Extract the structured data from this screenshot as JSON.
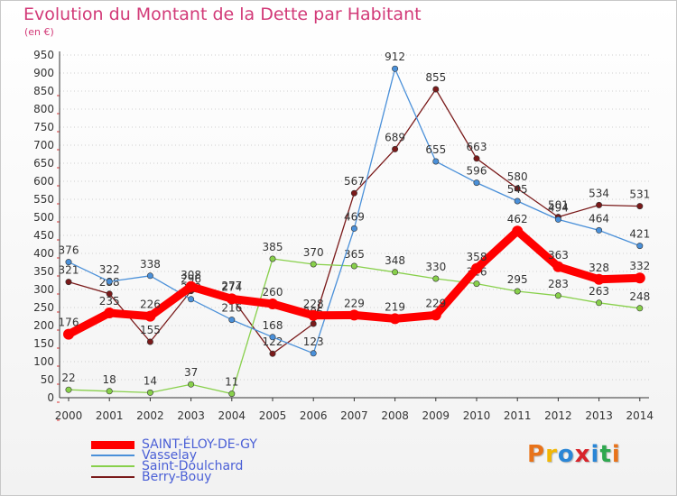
{
  "chart_data": {
    "type": "line",
    "title": "Evolution du Montant de la Dette par Habitant",
    "unit_label": "(en €)",
    "ylim": [
      0,
      950
    ],
    "y_ticks": [
      0,
      50,
      100,
      150,
      200,
      250,
      300,
      350,
      400,
      450,
      500,
      550,
      600,
      650,
      700,
      750,
      800,
      850,
      900,
      950
    ],
    "x": [
      "2000",
      "2001",
      "2002",
      "2003",
      "2004",
      "2005",
      "2006",
      "2007",
      "2008",
      "2009",
      "2010",
      "2011",
      "2012",
      "2013",
      "2014"
    ],
    "grid": "horizontal dotted",
    "legend_position": "bottom-left",
    "series": [
      {
        "name": "SAINT-ÉLOY-DE-GY",
        "color": "#ff0000",
        "values": [
          176,
          235,
          226,
          308,
          274,
          260,
          228,
          229,
          219,
          229,
          358,
          462,
          363,
          328,
          332
        ],
        "segments": [
          [
            0,
            14
          ]
        ]
      },
      {
        "name": "Vasselay",
        "color": "#4a90d9",
        "values": [
          376,
          322,
          338,
          273,
          216,
          168,
          123,
          469,
          912,
          655,
          596,
          545,
          494,
          464,
          421
        ],
        "segments": [
          [
            0,
            6
          ],
          [
            6,
            14
          ]
        ]
      },
      {
        "name": "Saint-Doulchard",
        "color": "#88d04b",
        "values": [
          22,
          18,
          14,
          37,
          11,
          385,
          370,
          365,
          348,
          330,
          316,
          295,
          283,
          263,
          248
        ],
        "segments": [
          [
            0,
            14
          ]
        ]
      },
      {
        "name": "Berry-Bouy",
        "color": "#7a1a1a",
        "values": [
          321,
          288,
          155,
          296,
          277,
          122,
          205,
          567,
          689,
          855,
          663,
          580,
          501,
          534,
          531
        ],
        "segments": [
          [
            0,
            14
          ]
        ]
      }
    ]
  },
  "logo_text": "Proxiti",
  "logo_colors": [
    "#e8731a",
    "#f2b705",
    "#2a86d6",
    "#d8232a",
    "#2a86d6",
    "#2fa84f",
    "#e8731a"
  ]
}
